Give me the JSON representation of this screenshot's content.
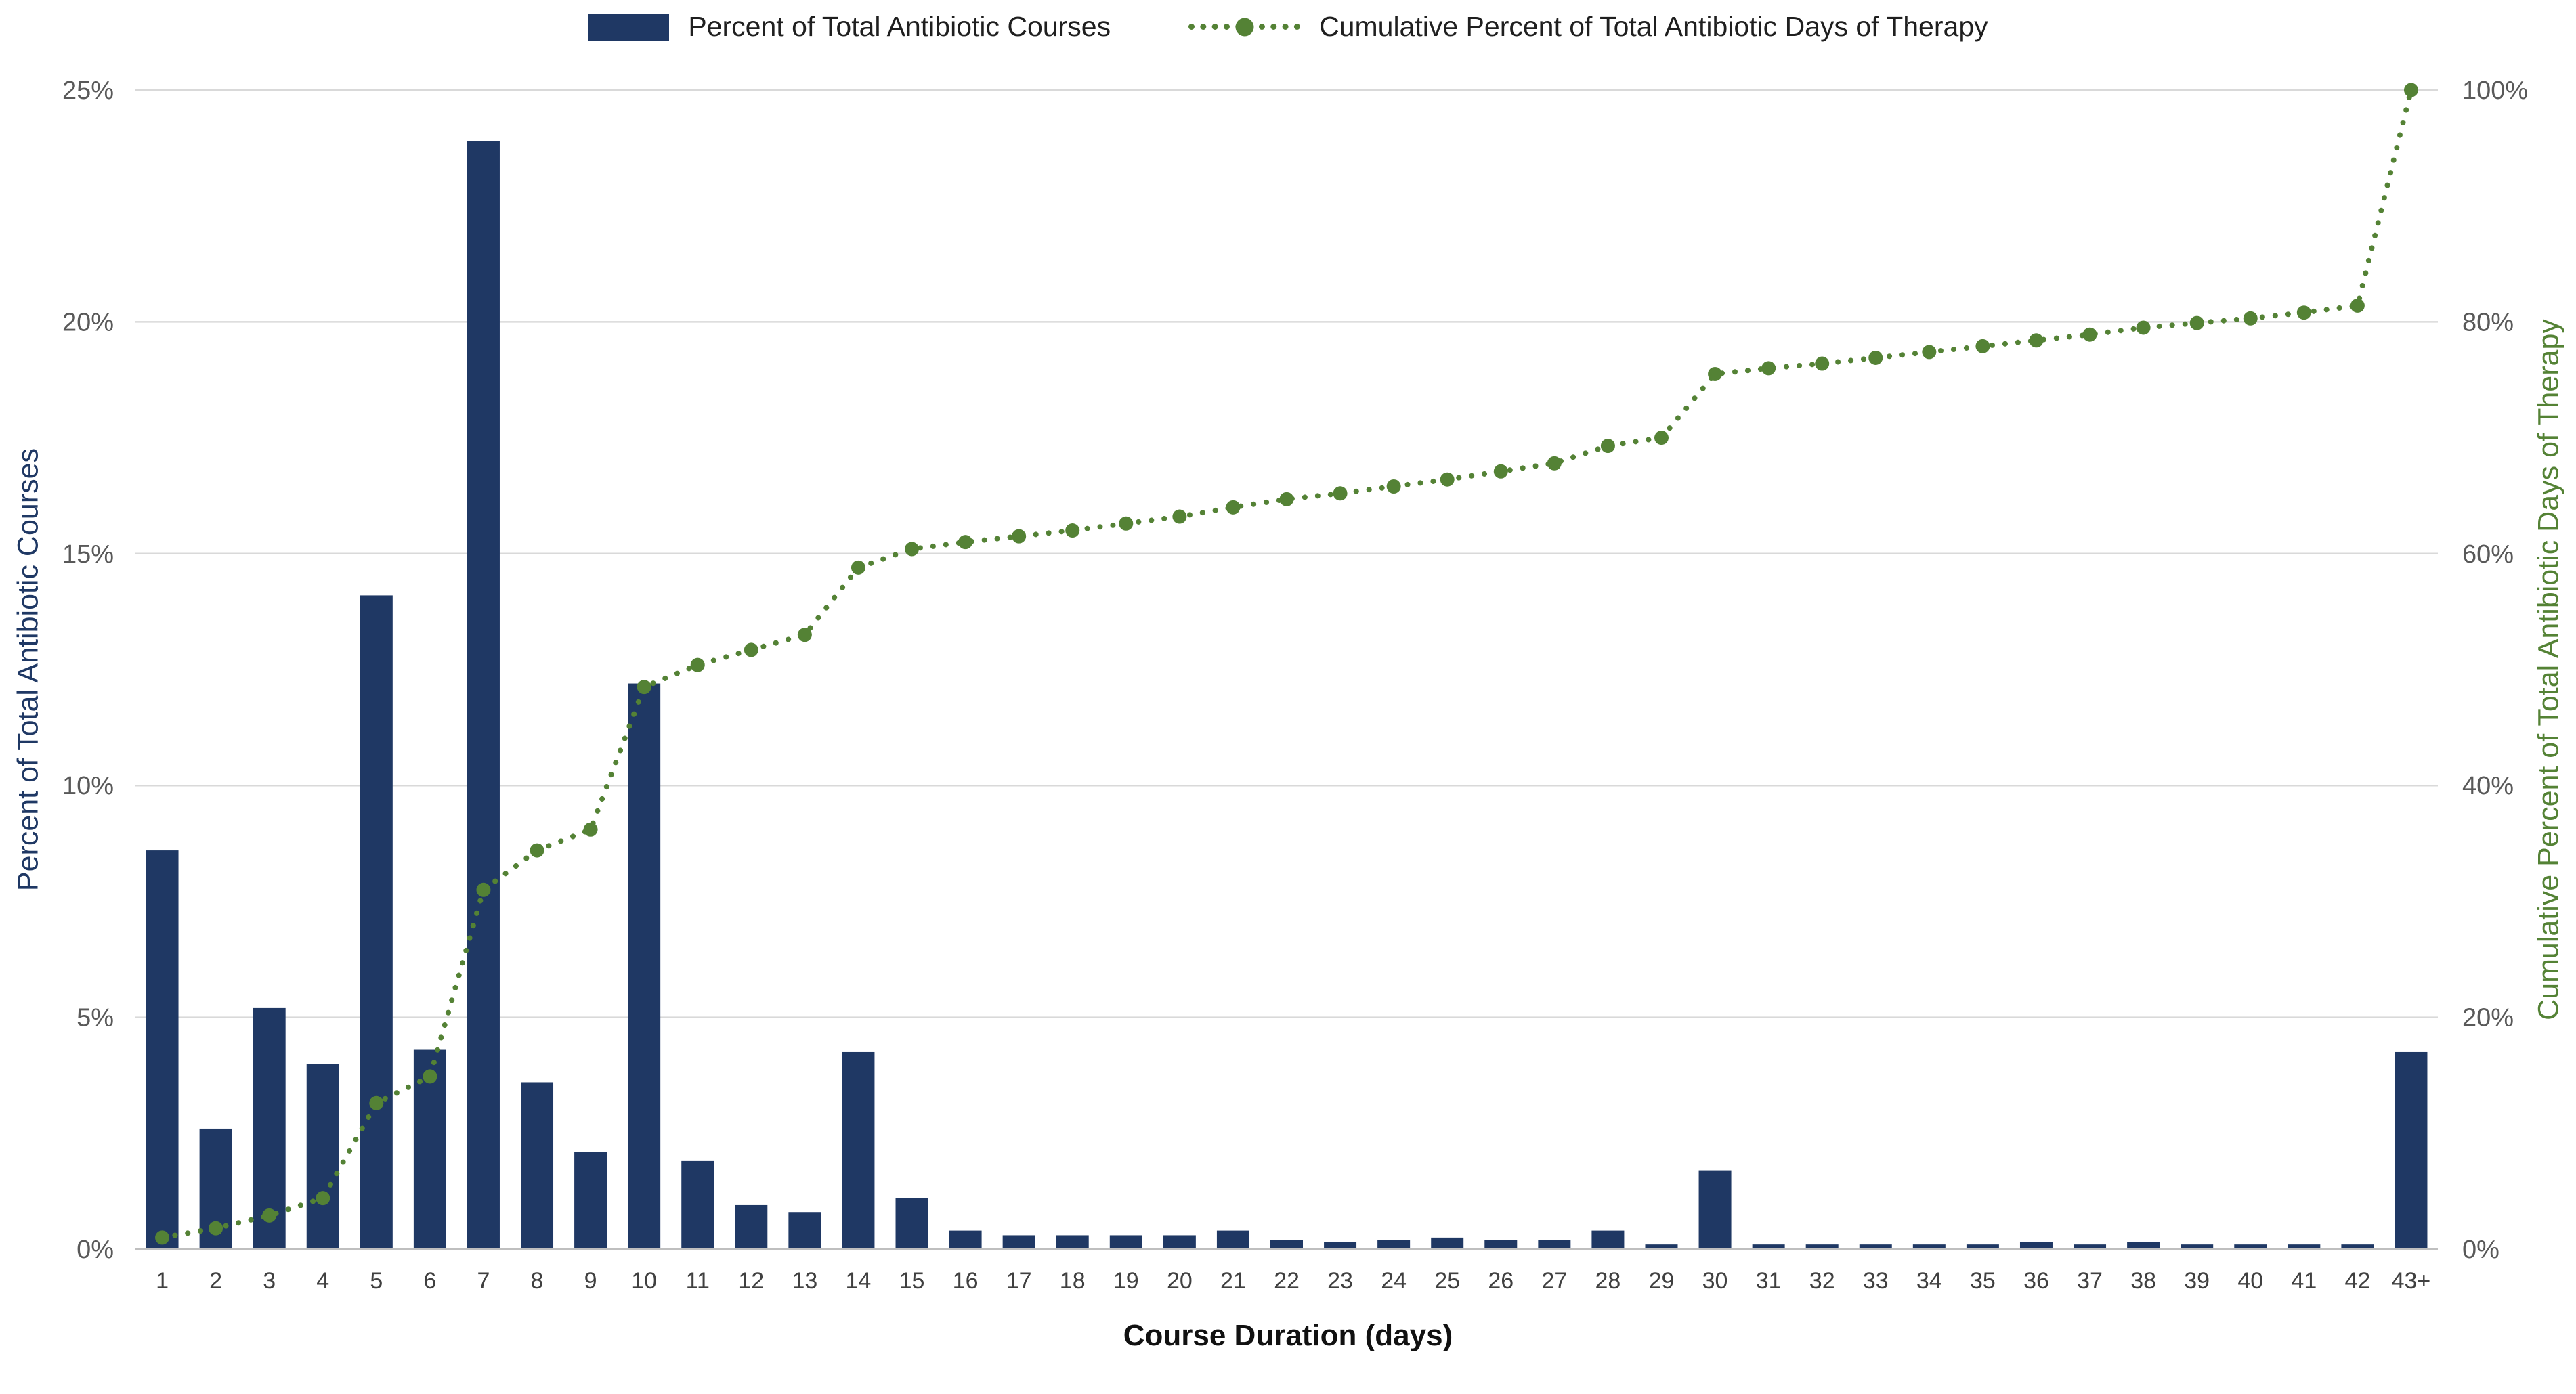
{
  "chart_data": {
    "type": "bar",
    "subtype": "pareto-combo-bar-line",
    "title": "",
    "categories": [
      "1",
      "2",
      "3",
      "4",
      "5",
      "6",
      "7",
      "8",
      "9",
      "10",
      "11",
      "12",
      "13",
      "14",
      "15",
      "16",
      "17",
      "18",
      "19",
      "20",
      "21",
      "22",
      "23",
      "24",
      "25",
      "26",
      "27",
      "28",
      "29",
      "30",
      "31",
      "32",
      "33",
      "34",
      "35",
      "36",
      "37",
      "38",
      "39",
      "40",
      "41",
      "42",
      "43+"
    ],
    "series": [
      {
        "name": "Percent of Total Antibiotic Courses",
        "type": "bar",
        "axis": "left",
        "color": "#1f3864",
        "values": [
          8.6,
          2.6,
          5.2,
          4.0,
          14.1,
          4.3,
          23.9,
          3.6,
          2.1,
          12.2,
          1.9,
          0.95,
          0.8,
          4.25,
          1.1,
          0.4,
          0.3,
          0.3,
          0.3,
          0.3,
          0.4,
          0.2,
          0.15,
          0.2,
          0.25,
          0.2,
          0.2,
          0.4,
          0.1,
          1.7,
          0.1,
          0.1,
          0.1,
          0.1,
          0.1,
          0.15,
          0.1,
          0.15,
          0.1,
          0.1,
          0.1,
          0.1,
          4.25
        ]
      },
      {
        "name": "Cumulative Percent of Total Antibiotic Days of Therapy",
        "type": "line",
        "axis": "right",
        "color": "#548235",
        "line_style": "dotted-with-markers",
        "values": [
          1.0,
          1.8,
          2.9,
          4.4,
          12.6,
          14.9,
          31.0,
          34.4,
          36.2,
          48.5,
          50.4,
          51.7,
          53.0,
          58.8,
          60.4,
          61.0,
          61.5,
          62.0,
          62.6,
          63.2,
          64.0,
          64.7,
          65.2,
          65.8,
          66.4,
          67.1,
          67.8,
          69.3,
          70.0,
          75.5,
          76.0,
          76.4,
          76.9,
          77.4,
          77.9,
          78.4,
          78.9,
          79.5,
          79.9,
          80.3,
          80.8,
          81.4,
          100.0
        ]
      }
    ],
    "x_axis": {
      "label": "Course Duration (days)"
    },
    "left_axis": {
      "label": "Percent of Total Antibiotic Courses",
      "min": 0,
      "max": 25,
      "tick_values": [
        0,
        5,
        10,
        15,
        20,
        25
      ],
      "tick_labels": [
        "0%",
        "5%",
        "10%",
        "15%",
        "20%",
        "25%"
      ],
      "title_color": "#1f3864"
    },
    "right_axis": {
      "label": "Cumulative Percent of Total Antibiotic Days of Therapy",
      "min": 0,
      "max": 100,
      "tick_values": [
        0,
        20,
        40,
        60,
        80,
        100
      ],
      "tick_labels": [
        "0%",
        "20%",
        "40%",
        "60%",
        "80%",
        "100%"
      ],
      "title_color": "#548235"
    },
    "grid": true,
    "legend_position": "top",
    "colors": {
      "grid": "#d9d9d9",
      "axis_line": "#bfbfbf",
      "tick_label": "#595959",
      "x_tick_label": "#404040",
      "background": "#ffffff"
    }
  }
}
